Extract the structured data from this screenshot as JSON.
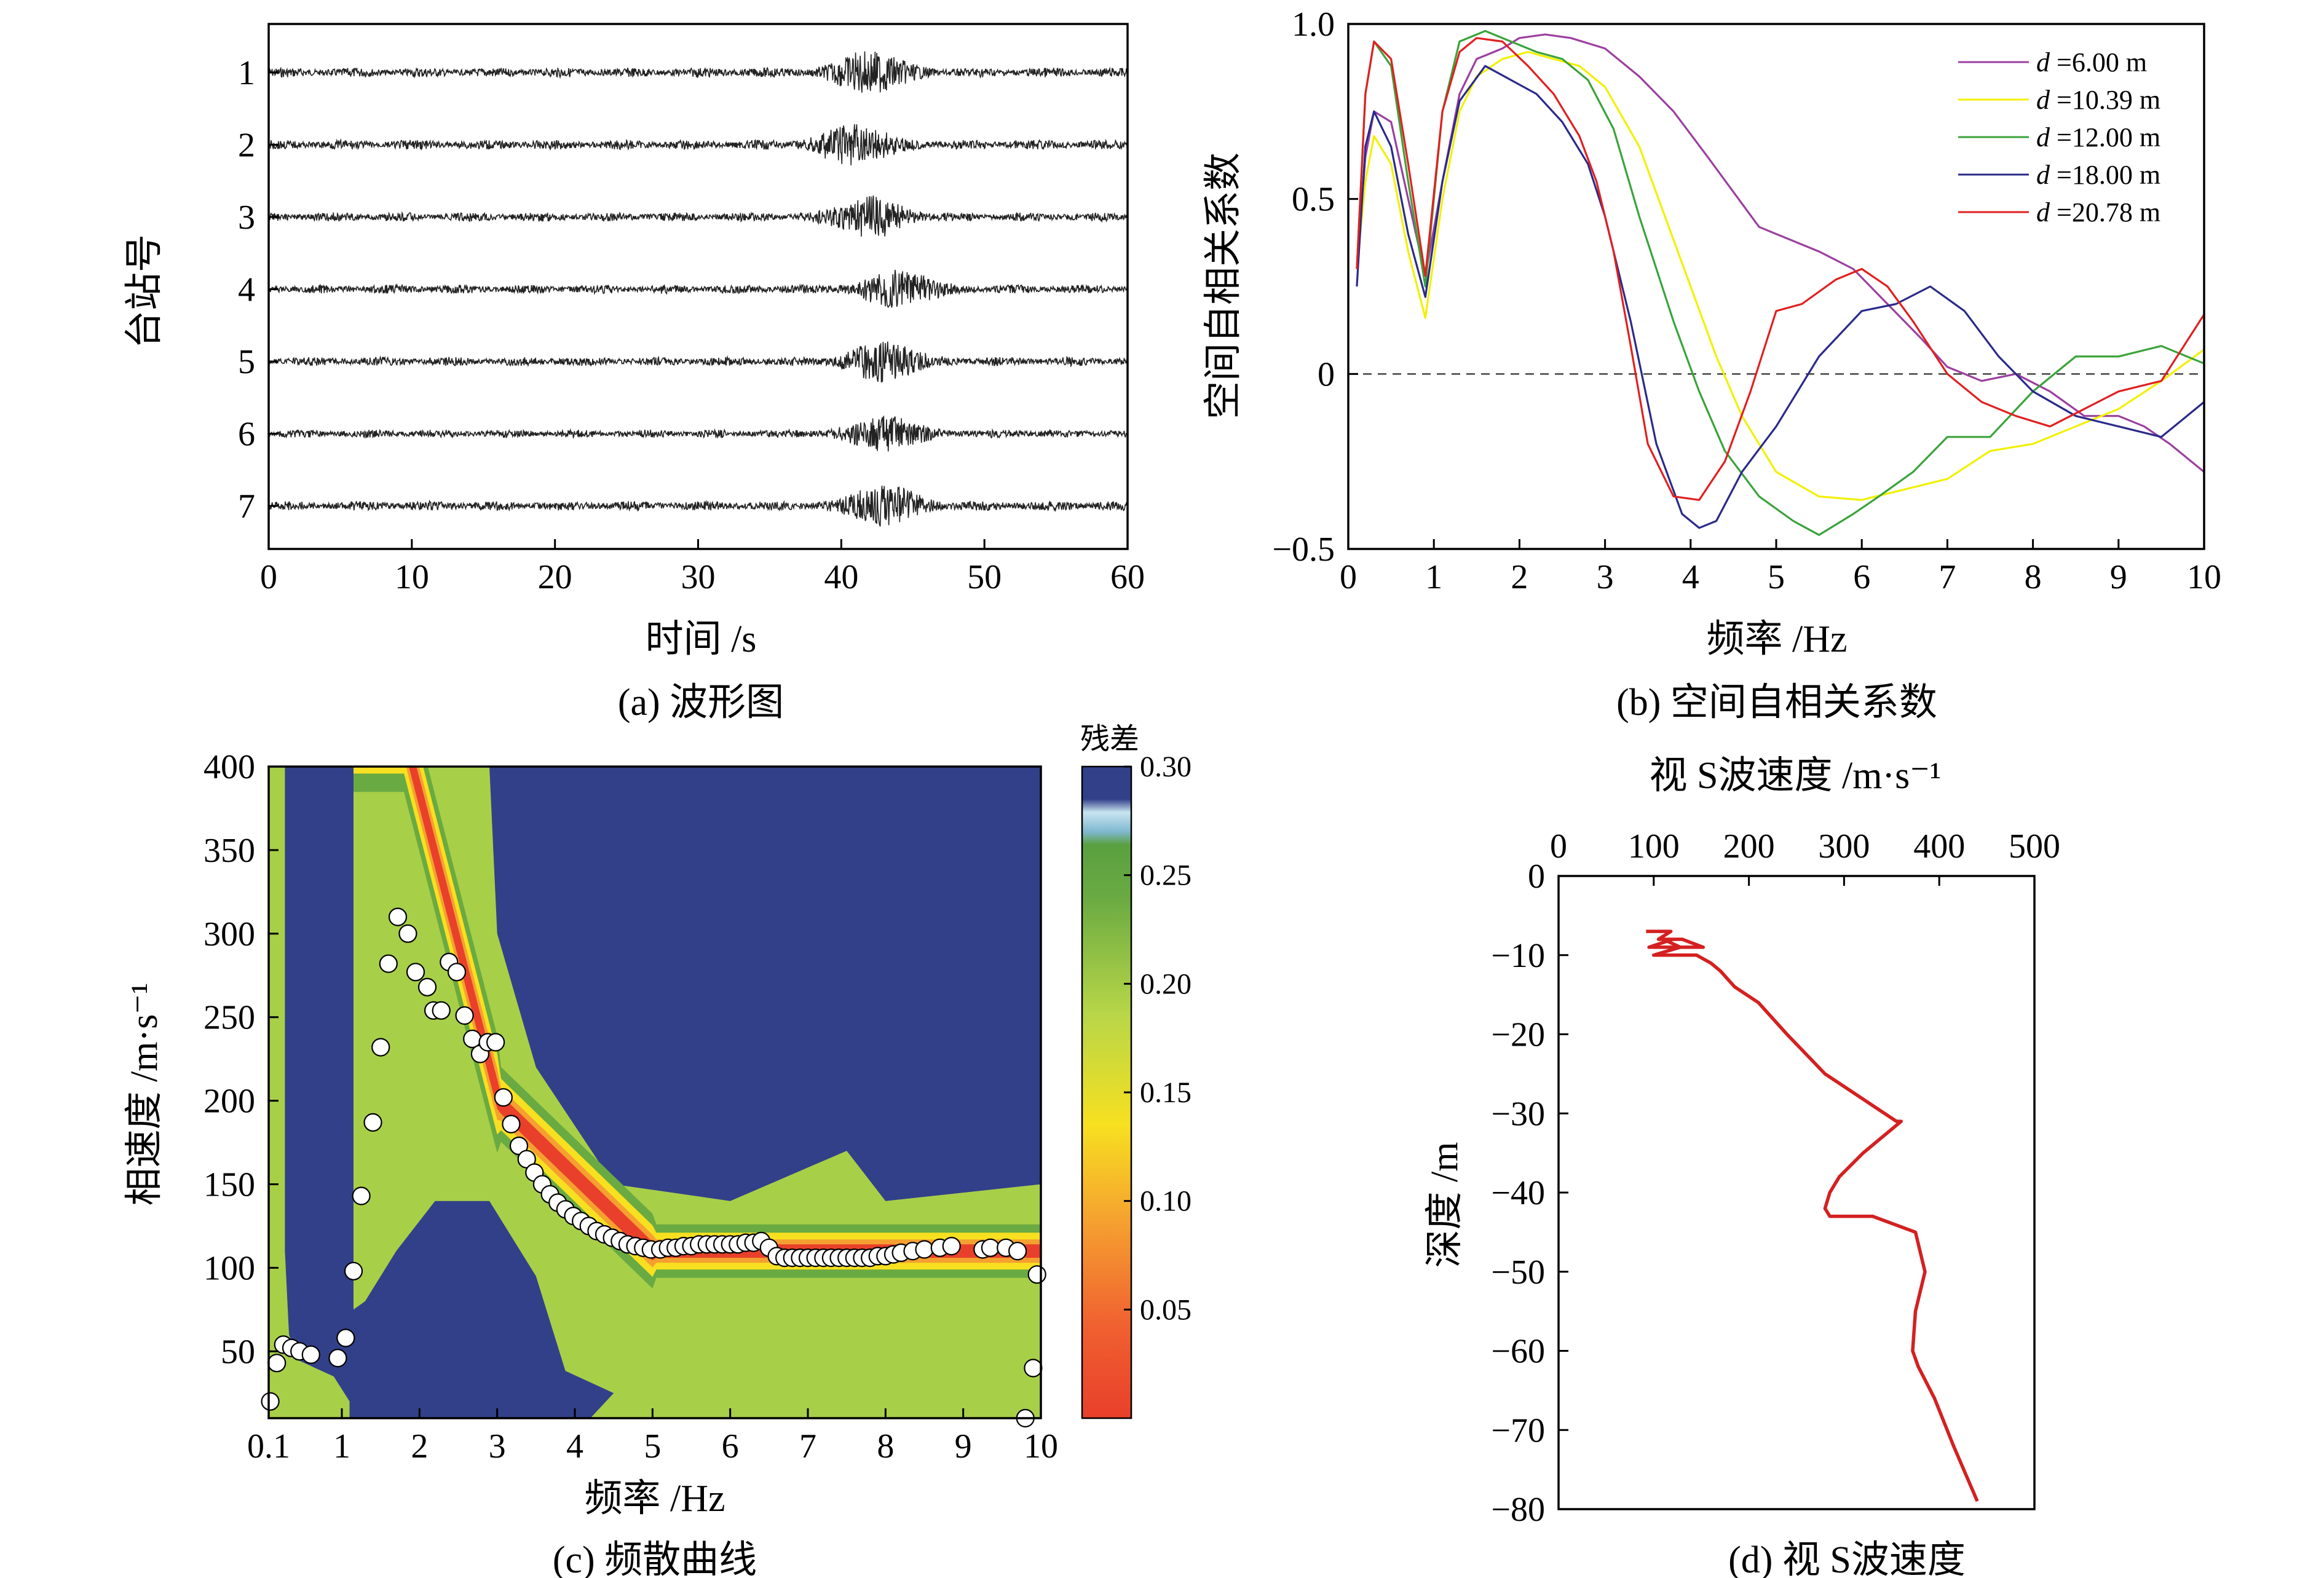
{
  "chart_data": [
    {
      "id": "a",
      "type": "line",
      "caption": "(a) 波形图",
      "xlabel": "时间 /s",
      "ylabel": "台站号",
      "xlim": [
        0,
        60
      ],
      "xticks": [
        0,
        10,
        20,
        30,
        40,
        50,
        60
      ],
      "categories": [
        "1",
        "2",
        "3",
        "4",
        "5",
        "6",
        "7"
      ],
      "series": [
        {
          "station": "1",
          "burst_center_s": 42,
          "amplitude": 0.45
        },
        {
          "station": "2",
          "burst_center_s": 41,
          "amplitude": 0.45
        },
        {
          "station": "3",
          "burst_center_s": 42,
          "amplitude": 0.42
        },
        {
          "station": "4",
          "burst_center_s": 44,
          "amplitude": 0.42
        },
        {
          "station": "5",
          "burst_center_s": 43,
          "amplitude": 0.42
        },
        {
          "station": "6",
          "burst_center_s": 43,
          "amplitude": 0.38
        },
        {
          "station": "7",
          "burst_center_s": 43,
          "amplitude": 0.45
        }
      ]
    },
    {
      "id": "b",
      "type": "line",
      "caption": "(b) 空间自相关系数",
      "xlabel": "频率 /Hz",
      "ylabel": "空间自相关系数",
      "xlim": [
        0,
        10
      ],
      "ylim": [
        -0.5,
        1.0
      ],
      "xticks": [
        0,
        1,
        2,
        3,
        4,
        5,
        6,
        7,
        8,
        9,
        10
      ],
      "yticks": [
        -0.5,
        0,
        0.5,
        1.0
      ],
      "ytick_labels": [
        "−0.5",
        "0",
        "0.5",
        "1.0"
      ],
      "zero_line": "dashed",
      "legend_position": "top-right",
      "series": [
        {
          "name": "d =6.00 m",
          "color": "#9b3fa0",
          "x": [
            0.1,
            0.2,
            0.3,
            0.5,
            0.7,
            0.9,
            1.1,
            1.3,
            1.5,
            1.8,
            2.0,
            2.3,
            2.6,
            3.0,
            3.4,
            3.8,
            4.2,
            4.5,
            4.8,
            5.2,
            5.5,
            5.9,
            6.3,
            6.7,
            7.0,
            7.4,
            7.8,
            8.2,
            8.6,
            9.0,
            9.3,
            9.6,
            10.0
          ],
          "y": [
            0.3,
            0.62,
            0.75,
            0.72,
            0.5,
            0.28,
            0.55,
            0.8,
            0.9,
            0.93,
            0.96,
            0.97,
            0.96,
            0.93,
            0.85,
            0.75,
            0.62,
            0.52,
            0.42,
            0.38,
            0.35,
            0.3,
            0.2,
            0.1,
            0.02,
            -0.02,
            0.0,
            -0.05,
            -0.12,
            -0.12,
            -0.15,
            -0.2,
            -0.28
          ]
        },
        {
          "name": "d =10.39 m",
          "color": "#f2f000",
          "x": [
            0.1,
            0.2,
            0.3,
            0.5,
            0.7,
            0.9,
            1.1,
            1.3,
            1.5,
            1.8,
            2.1,
            2.4,
            2.7,
            3.0,
            3.4,
            3.7,
            4.0,
            4.3,
            4.6,
            5.0,
            5.5,
            6.0,
            6.5,
            7.0,
            7.5,
            8.0,
            8.5,
            9.0,
            9.5,
            10.0
          ],
          "y": [
            0.3,
            0.55,
            0.68,
            0.6,
            0.35,
            0.16,
            0.5,
            0.75,
            0.85,
            0.9,
            0.92,
            0.9,
            0.88,
            0.82,
            0.65,
            0.45,
            0.25,
            0.05,
            -0.12,
            -0.28,
            -0.35,
            -0.36,
            -0.33,
            -0.3,
            -0.22,
            -0.2,
            -0.15,
            -0.1,
            -0.02,
            0.07
          ]
        },
        {
          "name": "d =12.00 m",
          "color": "#3aa33a",
          "x": [
            0.1,
            0.2,
            0.3,
            0.5,
            0.7,
            0.9,
            1.1,
            1.3,
            1.6,
            1.9,
            2.2,
            2.5,
            2.8,
            3.1,
            3.4,
            3.8,
            4.1,
            4.4,
            4.8,
            5.2,
            5.5,
            5.9,
            6.2,
            6.6,
            7.0,
            7.5,
            8.0,
            8.5,
            9.0,
            9.5,
            10.0
          ],
          "y": [
            0.3,
            0.8,
            0.95,
            0.88,
            0.55,
            0.25,
            0.75,
            0.95,
            0.98,
            0.95,
            0.92,
            0.9,
            0.84,
            0.7,
            0.45,
            0.15,
            -0.05,
            -0.22,
            -0.35,
            -0.42,
            -0.46,
            -0.4,
            -0.35,
            -0.28,
            -0.18,
            -0.18,
            -0.05,
            0.05,
            0.05,
            0.08,
            0.03
          ]
        },
        {
          "name": "d =18.00 m",
          "color": "#2a2a8a",
          "x": [
            0.1,
            0.2,
            0.3,
            0.5,
            0.7,
            0.9,
            1.1,
            1.3,
            1.6,
            1.9,
            2.2,
            2.5,
            2.8,
            3.0,
            3.3,
            3.6,
            3.9,
            4.1,
            4.3,
            4.6,
            5.0,
            5.5,
            6.0,
            6.4,
            6.8,
            7.2,
            7.6,
            8.0,
            8.5,
            9.0,
            9.5,
            10.0
          ],
          "y": [
            0.25,
            0.65,
            0.75,
            0.65,
            0.4,
            0.22,
            0.55,
            0.78,
            0.88,
            0.84,
            0.8,
            0.72,
            0.6,
            0.45,
            0.15,
            -0.2,
            -0.4,
            -0.44,
            -0.42,
            -0.28,
            -0.15,
            0.05,
            0.18,
            0.2,
            0.25,
            0.18,
            0.05,
            -0.05,
            -0.12,
            -0.15,
            -0.18,
            -0.08
          ]
        },
        {
          "name": "d =20.78 m",
          "color": "#e02020",
          "x": [
            0.1,
            0.2,
            0.3,
            0.5,
            0.7,
            0.9,
            1.1,
            1.3,
            1.5,
            1.8,
            2.1,
            2.4,
            2.7,
            2.9,
            3.1,
            3.3,
            3.5,
            3.8,
            4.1,
            4.4,
            4.7,
            5.0,
            5.3,
            5.7,
            6.0,
            6.3,
            6.6,
            7.0,
            7.4,
            7.8,
            8.2,
            8.6,
            9.0,
            9.5,
            10.0
          ],
          "y": [
            0.3,
            0.8,
            0.95,
            0.9,
            0.6,
            0.28,
            0.75,
            0.92,
            0.96,
            0.95,
            0.88,
            0.8,
            0.68,
            0.55,
            0.35,
            0.08,
            -0.2,
            -0.35,
            -0.36,
            -0.25,
            -0.05,
            0.18,
            0.2,
            0.27,
            0.3,
            0.25,
            0.15,
            0.0,
            -0.08,
            -0.12,
            -0.15,
            -0.1,
            -0.05,
            -0.02,
            0.17
          ]
        }
      ]
    },
    {
      "id": "c",
      "type": "heatmap",
      "caption": "(c) 频散曲线",
      "xlabel": "频率 /Hz",
      "ylabel": "相速度 /m·s⁻¹",
      "xlim": [
        0.1,
        10
      ],
      "ylim": [
        10,
        400
      ],
      "xticks": [
        0.1,
        1,
        2,
        3,
        4,
        5,
        6,
        7,
        8,
        9,
        10
      ],
      "xtick_labels": [
        "0.1",
        "1",
        "2",
        "3",
        "4",
        "5",
        "6",
        "7",
        "8",
        "9",
        "10"
      ],
      "yticks": [
        50,
        100,
        150,
        200,
        250,
        300,
        350,
        400
      ],
      "colorbar": {
        "title": "残差",
        "ticks": [
          0.05,
          0.1,
          0.15,
          0.2,
          0.25,
          0.3
        ],
        "tick_labels": [
          "0.05",
          "0.10",
          "0.15",
          "0.20",
          "0.25",
          "0.30"
        ],
        "colors": [
          "#e8402a",
          "#f5a030",
          "#f7e020",
          "#a8cf48",
          "#6aaa42",
          "#32408a"
        ]
      },
      "points": {
        "x": [
          0.12,
          0.2,
          0.28,
          0.38,
          0.48,
          0.62,
          0.95,
          1.05,
          1.15,
          1.25,
          1.4,
          1.5,
          1.6,
          1.72,
          1.85,
          1.95,
          2.1,
          2.18,
          2.28,
          2.38,
          2.48,
          2.58,
          2.68,
          2.78,
          2.88,
          2.98,
          3.08,
          3.18,
          3.28,
          3.38,
          3.48,
          3.58,
          3.68,
          3.78,
          3.88,
          3.98,
          4.08,
          4.18,
          4.28,
          4.38,
          4.48,
          4.58,
          4.68,
          4.78,
          4.88,
          4.98,
          5.1,
          5.2,
          5.3,
          5.4,
          5.5,
          5.6,
          5.7,
          5.8,
          5.9,
          6.0,
          6.1,
          6.2,
          6.3,
          6.4,
          6.5,
          6.6,
          6.7,
          6.8,
          6.9,
          7.0,
          7.1,
          7.2,
          7.3,
          7.4,
          7.5,
          7.6,
          7.7,
          7.8,
          7.9,
          8.0,
          8.1,
          8.2,
          8.35,
          8.5,
          8.7,
          8.85,
          9.25,
          9.35,
          9.55,
          9.7,
          9.8,
          9.9,
          9.95
        ],
        "y": [
          20,
          43,
          54,
          52,
          50,
          48,
          46,
          58,
          98,
          143,
          187,
          232,
          282,
          310,
          300,
          277,
          268,
          254,
          254,
          283,
          277,
          251,
          237,
          228,
          235,
          235,
          202,
          186,
          173,
          165,
          157,
          150,
          144,
          139,
          135,
          131,
          128,
          125,
          122,
          120,
          118,
          116,
          114,
          113,
          112,
          111,
          111,
          112,
          112,
          113,
          113,
          114,
          114,
          114,
          114,
          114,
          114,
          115,
          115,
          116,
          112,
          107,
          106,
          106,
          106,
          106,
          106,
          106,
          106,
          106,
          106,
          106,
          106,
          106,
          107,
          107,
          108,
          109,
          110,
          111,
          112,
          113,
          111,
          112,
          112,
          110,
          10,
          40,
          96
        ]
      }
    },
    {
      "id": "d",
      "type": "line",
      "caption": "(d) 视 S波速度",
      "xlabel": "视 S波速度 /m·s⁻¹",
      "ylabel": "深度 /m",
      "xlim": [
        0,
        500
      ],
      "ylim": [
        -80,
        0
      ],
      "xticks": [
        0,
        100,
        200,
        300,
        400,
        500
      ],
      "yticks": [
        0,
        -10,
        -20,
        -30,
        -40,
        -50,
        -60,
        -70,
        -80
      ],
      "ytick_labels": [
        "0",
        "−10",
        "−20",
        "−30",
        "−40",
        "−50",
        "−60",
        "−70",
        "−80"
      ],
      "color": "#d42020",
      "series": [
        {
          "x": [
            92,
            118,
            105,
            120,
            95,
            128,
            110,
            130,
            152,
            128,
            100,
            145,
            160,
            170,
            185,
            210,
            240,
            280,
            305,
            355,
            360,
            320,
            295,
            285,
            280,
            285,
            330,
            375,
            385,
            375,
            372,
            378,
            395,
            415,
            440
          ],
          "y": [
            -7,
            -7,
            -8,
            -8,
            -9,
            -9,
            -8,
            -8,
            -9,
            -9,
            -10,
            -10,
            -11,
            -12,
            -14,
            -16,
            -20,
            -25,
            -27,
            -31,
            -31,
            -35,
            -38,
            -40,
            -42,
            -43,
            -43,
            -45,
            -50,
            -55,
            -60,
            -62,
            -66,
            -72,
            -79
          ]
        }
      ]
    }
  ]
}
